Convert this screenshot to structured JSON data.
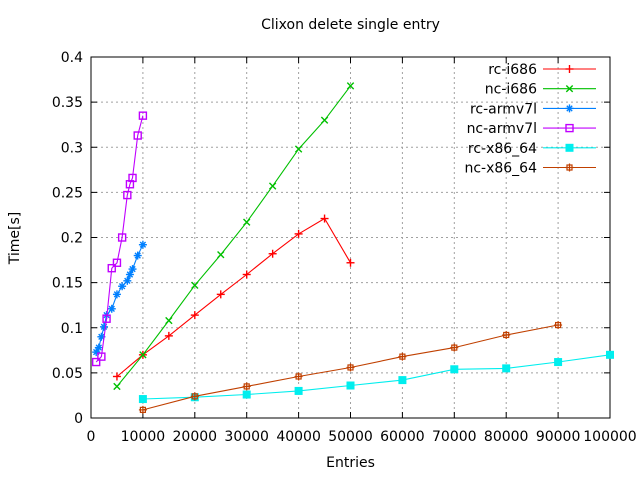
{
  "chart_data": {
    "type": "line",
    "title": "Clixon delete single entry",
    "xlabel": "Entries",
    "ylabel": "Time[s]",
    "xlim": [
      0,
      100000
    ],
    "ylim": [
      0,
      0.4
    ],
    "x_tick_labels": [
      "0",
      "10000",
      "20000",
      "30000",
      "40000",
      "50000",
      "60000",
      "70000",
      "80000",
      "90000",
      "100000"
    ],
    "y_tick_labels": [
      "0",
      "0.05",
      "0.1",
      "0.15",
      "0.2",
      "0.25",
      "0.3",
      "0.35",
      "0.4"
    ],
    "grid": true,
    "grid_color": "#a0a0a0",
    "border_color": "#000000",
    "legend_position": "top-right-inside",
    "series": [
      {
        "name": "rc-i686",
        "color": "#ff0000",
        "marker": "plus",
        "points": [
          [
            5000,
            0.046
          ],
          [
            10000,
            0.07
          ],
          [
            15000,
            0.091
          ],
          [
            20000,
            0.114
          ],
          [
            25000,
            0.137
          ],
          [
            30000,
            0.159
          ],
          [
            35000,
            0.182
          ],
          [
            40000,
            0.204
          ],
          [
            45000,
            0.221
          ],
          [
            50000,
            0.172
          ]
        ]
      },
      {
        "name": "nc-i686",
        "color": "#00c000",
        "marker": "cross",
        "points": [
          [
            5000,
            0.035
          ],
          [
            10000,
            0.07
          ],
          [
            15000,
            0.108
          ],
          [
            20000,
            0.147
          ],
          [
            25000,
            0.181
          ],
          [
            30000,
            0.217
          ],
          [
            35000,
            0.257
          ],
          [
            40000,
            0.298
          ],
          [
            45000,
            0.33
          ],
          [
            50000,
            0.368
          ]
        ]
      },
      {
        "name": "rc-armv7l",
        "color": "#0080ff",
        "marker": "star",
        "points": [
          [
            1000,
            0.073
          ],
          [
            1500,
            0.078
          ],
          [
            2000,
            0.09
          ],
          [
            2500,
            0.101
          ],
          [
            3000,
            0.114
          ],
          [
            4000,
            0.121
          ],
          [
            5000,
            0.137
          ],
          [
            6000,
            0.146
          ],
          [
            7000,
            0.152
          ],
          [
            7500,
            0.159
          ],
          [
            8000,
            0.165
          ],
          [
            9000,
            0.18
          ],
          [
            10000,
            0.192
          ]
        ]
      },
      {
        "name": "nc-armv7l",
        "color": "#c000ff",
        "marker": "square-open",
        "points": [
          [
            1000,
            0.062
          ],
          [
            2000,
            0.068
          ],
          [
            3000,
            0.11
          ],
          [
            4000,
            0.166
          ],
          [
            5000,
            0.172
          ],
          [
            6000,
            0.2
          ],
          [
            7000,
            0.247
          ],
          [
            7500,
            0.259
          ],
          [
            8000,
            0.266
          ],
          [
            9000,
            0.313
          ],
          [
            10000,
            0.335
          ]
        ]
      },
      {
        "name": "rc-x86_64",
        "color": "#00eeee",
        "marker": "square-filled",
        "points": [
          [
            10000,
            0.021
          ],
          [
            20000,
            0.023
          ],
          [
            30000,
            0.026
          ],
          [
            40000,
            0.03
          ],
          [
            50000,
            0.036
          ],
          [
            60000,
            0.042
          ],
          [
            70000,
            0.054
          ],
          [
            80000,
            0.055
          ],
          [
            90000,
            0.062
          ],
          [
            100000,
            0.07
          ]
        ]
      },
      {
        "name": "nc-x86_64",
        "color": "#c04000",
        "marker": "square-plus",
        "points": [
          [
            10000,
            0.009
          ],
          [
            20000,
            0.024
          ],
          [
            30000,
            0.035
          ],
          [
            40000,
            0.046
          ],
          [
            50000,
            0.056
          ],
          [
            60000,
            0.068
          ],
          [
            70000,
            0.078
          ],
          [
            80000,
            0.092
          ],
          [
            90000,
            0.103
          ]
        ]
      }
    ]
  }
}
